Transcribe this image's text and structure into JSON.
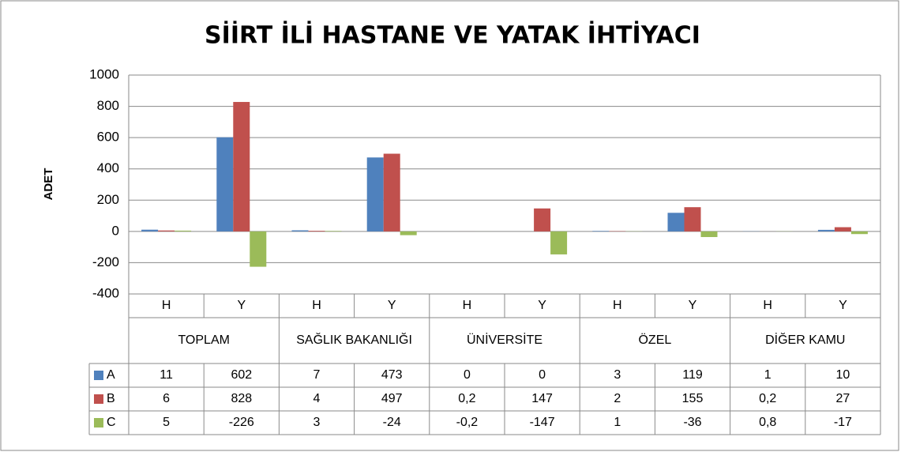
{
  "chart_data": {
    "type": "bar",
    "title": "SİİRT İLİ HASTANE VE YATAK İHTİYACI",
    "y_label": "ADET",
    "categories": [
      "H",
      "Y",
      "H",
      "Y",
      "H",
      "Y",
      "H",
      "Y",
      "H",
      "Y"
    ],
    "groups": [
      "TOPLAM",
      "SAĞLIK BAKANLIĞI",
      "ÜNİVERSİTE",
      "ÖZEL",
      "DİĞER KAMU"
    ],
    "series": [
      {
        "name": "A",
        "color": "#4f81bd",
        "values": [
          11,
          602,
          7,
          473,
          0,
          0,
          3,
          119,
          1,
          10
        ]
      },
      {
        "name": "B",
        "color": "#c0504d",
        "values": [
          6,
          828,
          4,
          497,
          0.2,
          147,
          2,
          155,
          0.2,
          27
        ],
        "value_labels": [
          "6",
          "828",
          "4",
          "497",
          "0,2",
          "147",
          "2",
          "155",
          "0,2",
          "27"
        ]
      },
      {
        "name": "C",
        "color": "#9bbb59",
        "values": [
          5,
          -226,
          3,
          -24,
          -0.2,
          -147,
          1,
          -36,
          0.8,
          -17
        ],
        "value_labels": [
          "5",
          "-226",
          "3",
          "-24",
          "-0,2",
          "-147",
          "1",
          "-36",
          "0,8",
          "-17"
        ]
      }
    ],
    "ylim": [
      -400,
      1000
    ],
    "yticks": [
      -400,
      -200,
      0,
      200,
      400,
      600,
      800,
      1000
    ],
    "grid": true
  }
}
